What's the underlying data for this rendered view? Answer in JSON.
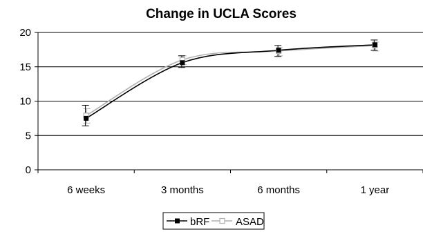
{
  "chart_data": {
    "type": "line",
    "title": "Change in UCLA Scores",
    "xlabel": "",
    "ylabel": "",
    "categories": [
      "6 weeks",
      "3 months",
      "6 months",
      "1 year"
    ],
    "ylim": [
      0,
      20
    ],
    "yticks": [
      "0",
      "5",
      "10",
      "15",
      "20"
    ],
    "grid": true,
    "legend_position": "bottom",
    "series": [
      {
        "name": "bRF",
        "color": "#000000",
        "marker": "filled-square",
        "values": [
          7.5,
          15.6,
          17.4,
          18.2
        ],
        "error_low": [
          6.4,
          14.9,
          16.5,
          17.4
        ],
        "error_high": [
          9.4,
          16.6,
          18.1,
          18.9
        ]
      },
      {
        "name": "ASAD",
        "color": "#b0b0b0",
        "marker": "hollow-square",
        "values": [
          7.9,
          16.0,
          17.3,
          18.1
        ],
        "error_low": [
          6.8,
          15.3,
          16.6,
          17.3
        ],
        "error_high": [
          8.9,
          16.6,
          17.8,
          18.6
        ]
      }
    ]
  }
}
